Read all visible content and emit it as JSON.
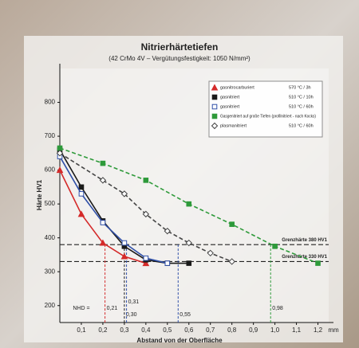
{
  "chart_data": {
    "type": "line",
    "title": "Nitrierhärtetiefen",
    "subtitle": "(42 CrMo 4V – Vergütungsfestigkeit: 1050 N/mm²)",
    "x_label": "Abstand von der Oberfläche",
    "y_label": "Härte HV1",
    "x_unit": "mm",
    "xlim": [
      0,
      1.25
    ],
    "ylim": [
      150,
      900
    ],
    "xticks": [
      {
        "value": 0.1,
        "label": "0,1"
      },
      {
        "value": 0.2,
        "label": "0,2"
      },
      {
        "value": 0.3,
        "label": "0,3"
      },
      {
        "value": 0.4,
        "label": "0,4"
      },
      {
        "value": 0.5,
        "label": "0,5"
      },
      {
        "value": 0.6,
        "label": "0,6"
      },
      {
        "value": 0.7,
        "label": "0,7"
      },
      {
        "value": 0.8,
        "label": "0,8"
      },
      {
        "value": 0.9,
        "label": "0,9"
      },
      {
        "value": 1.0,
        "label": "1,0"
      },
      {
        "value": 1.1,
        "label": "1,1"
      },
      {
        "value": 1.2,
        "label": "1,2"
      }
    ],
    "yticks": [
      200,
      300,
      400,
      500,
      600,
      700,
      800
    ],
    "legend": "upper right",
    "series": [
      {
        "name": "gasnitrocarburiert",
        "detail": "570 °C / 3h",
        "color": "#d42a2a",
        "marker": "triangle",
        "dashed": false,
        "x": [
          0,
          0.1,
          0.2,
          0.3,
          0.4
        ],
        "values": [
          600,
          470,
          385,
          345,
          325
        ]
      },
      {
        "name": "gasnitriert",
        "detail": "510 °C / 10h",
        "color": "#1a1a1a",
        "marker": "square",
        "dashed": false,
        "x": [
          0,
          0.1,
          0.2,
          0.3,
          0.4,
          0.5,
          0.6
        ],
        "values": [
          660,
          550,
          450,
          375,
          335,
          325,
          325
        ]
      },
      {
        "name": "gasnitriert",
        "detail": "510 °C / 60h",
        "color": "#2f4fa8",
        "marker": "square-open",
        "dashed": false,
        "x": [
          0,
          0.1,
          0.2,
          0.3,
          0.4,
          0.5
        ],
        "values": [
          640,
          530,
          445,
          385,
          340,
          325
        ]
      },
      {
        "name": "Gasgenitriert auf große Tiefen (profilnitriert - nach Kocks)",
        "detail": "",
        "color": "#2e9a3a",
        "marker": "square",
        "dashed": true,
        "x": [
          0,
          0.2,
          0.4,
          0.6,
          0.8,
          1.0,
          1.2
        ],
        "values": [
          665,
          620,
          570,
          500,
          440,
          375,
          325
        ]
      },
      {
        "name": "plasmanitriert",
        "detail": "510 °C / 60h",
        "color": "#444444",
        "marker": "diamond-open",
        "dashed": true,
        "x": [
          0,
          0.2,
          0.3,
          0.4,
          0.5,
          0.6,
          0.7,
          0.8
        ],
        "values": [
          650,
          570,
          530,
          470,
          420,
          385,
          355,
          330
        ]
      }
    ],
    "thresholds": [
      {
        "value": 380,
        "label": "Grenzhärte 380 HV1"
      },
      {
        "value": 330,
        "label": "Grenzhärte 330 HV1"
      }
    ],
    "nhd": {
      "label": "NHD =",
      "values": [
        0.21,
        0.3,
        0.31,
        0.55,
        0.98
      ],
      "value_labels": [
        "0,21",
        "0,30",
        "0,31",
        "0,55",
        "0,98"
      ],
      "colors": [
        "#d42a2a",
        "#1a1a1a",
        "#2f4fa8",
        "#2f4fa8",
        "#2e9a3a"
      ]
    }
  }
}
